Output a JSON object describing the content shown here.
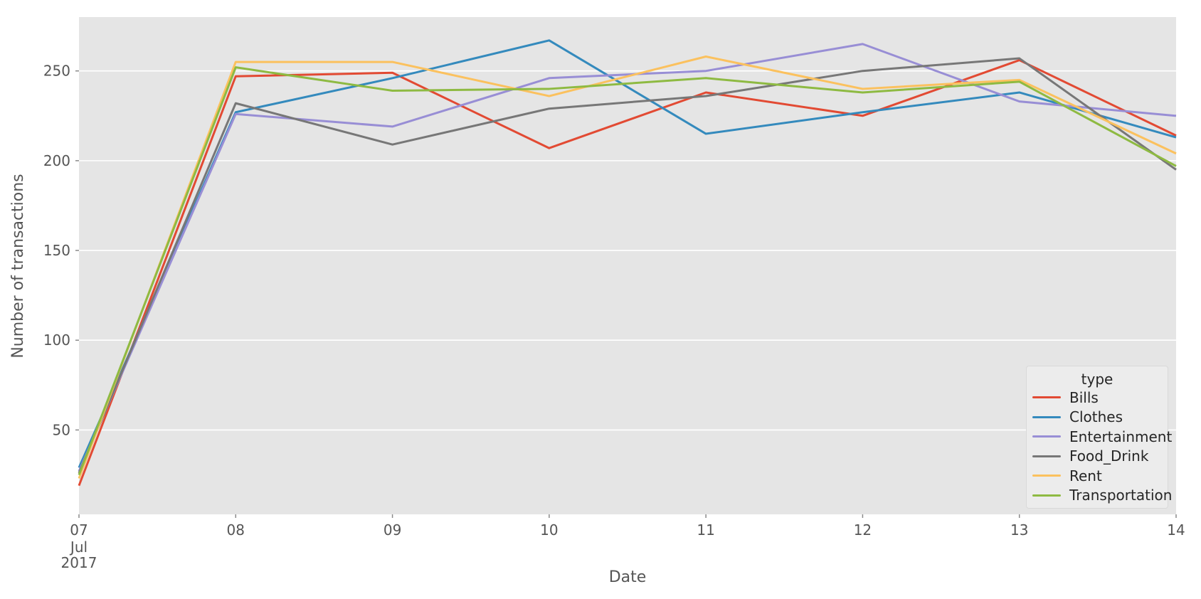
{
  "figure": {
    "background": "#ffffff",
    "plot_background": "#e5e5e5",
    "grid_color": "#ffffff",
    "tick_mark_color": "#8a8a8a",
    "tick_label_color": "#555555",
    "axis_label_color": "#555555"
  },
  "chart_data": {
    "type": "line",
    "title": "",
    "xlabel": "Date",
    "ylabel": "Number of transactions",
    "x_tick_labels": [
      "07",
      "08",
      "09",
      "10",
      "11",
      "12",
      "13",
      "14"
    ],
    "x_first_tick_sublabels": [
      "Jul",
      "2017"
    ],
    "y_ticks": [
      50,
      100,
      150,
      200,
      250
    ],
    "ylim": [
      3,
      280
    ],
    "grid": "horizontal-only",
    "legend_title": "type",
    "legend_position": "lower-right",
    "series": [
      {
        "name": "Bills",
        "color": "#E24A33",
        "values": [
          19,
          247,
          249,
          207,
          238,
          225,
          256,
          214
        ]
      },
      {
        "name": "Clothes",
        "color": "#348ABD",
        "values": [
          29,
          227,
          246,
          267,
          215,
          227,
          238,
          213
        ]
      },
      {
        "name": "Entertainment",
        "color": "#988ED5",
        "values": [
          27,
          226,
          219,
          246,
          250,
          265,
          233,
          225
        ]
      },
      {
        "name": "Food_Drink",
        "color": "#777777",
        "values": [
          26,
          232,
          209,
          229,
          236,
          250,
          257,
          195
        ]
      },
      {
        "name": "Rent",
        "color": "#FBC15E",
        "values": [
          23,
          255,
          255,
          236,
          258,
          240,
          245,
          204
        ]
      },
      {
        "name": "Transportation",
        "color": "#8EBA42",
        "values": [
          25,
          252,
          239,
          240,
          246,
          238,
          244,
          197
        ]
      }
    ]
  }
}
